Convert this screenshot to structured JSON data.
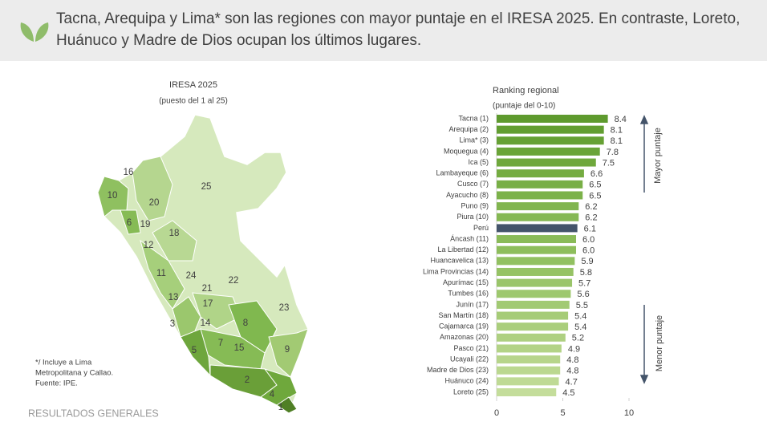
{
  "header": {
    "title_lines": [
      "Tacna, Arequipa y Lima* son las regiones con mayor puntaje en el IRESA 2025. En contraste, Loreto,",
      "Huánuco y Madre de Dios ocupan los últimos lugares."
    ]
  },
  "map": {
    "title": "IRESA 2025",
    "subtitle": "(puesto del 1 al 25)",
    "labels": [
      "16",
      "10",
      "20",
      "25",
      "6",
      "19",
      "18",
      "12",
      "11",
      "24",
      "21",
      "22",
      "13",
      "17",
      "23",
      "3",
      "14",
      "8",
      "7",
      "15",
      "9",
      "5",
      "2",
      "4",
      "1"
    ]
  },
  "note": [
    "*/ Incluye a Lima",
    "Metropolitana y Callao.",
    "Fuente: IPE."
  ],
  "footer": "RESULTADOS GENERALES",
  "chart_data": {
    "type": "bar",
    "orientation": "horizontal",
    "title": "Ranking regional",
    "subtitle": "(puntaje del 0-10)",
    "categories": [
      "Tacna (1)",
      "Arequipa (2)",
      "Lima* (3)",
      "Moquegua (4)",
      "Ica (5)",
      "Lambayeque (6)",
      "Cusco (7)",
      "Ayacucho (8)",
      "Puno (9)",
      "Piura (10)",
      "Perú",
      "Áncash (11)",
      "La Libertad (12)",
      "Huancavelica (13)",
      "Lima Provincias (14)",
      "Apurímac (15)",
      "Tumbes (16)",
      "Junín (17)",
      "San Martín (18)",
      "Cajamarca (19)",
      "Amazonas (20)",
      "Pasco (21)",
      "Ucayali (22)",
      "Madre de Dios (23)",
      "Huánuco (24)",
      "Loreto (25)"
    ],
    "values": [
      8.4,
      8.1,
      8.1,
      7.8,
      7.5,
      6.6,
      6.5,
      6.5,
      6.2,
      6.2,
      6.1,
      6,
      6,
      5.9,
      5.8,
      5.7,
      5.6,
      5.5,
      5.4,
      5.4,
      5.2,
      4.9,
      4.8,
      4.8,
      4.7,
      4.5
    ],
    "value_labels": [
      "8.4",
      "8.1",
      "8.1",
      "7.8",
      "7.5",
      "6.6",
      "6.5",
      "6.5",
      "6.2",
      "6.2",
      "6.1",
      "6.0",
      "6.0",
      "5.9",
      "5.8",
      "5.7",
      "5.6",
      "5.5",
      "5.4",
      "5.4",
      "5.2",
      "4.9",
      "4.8",
      "4.8",
      "4.7",
      "4.5"
    ],
    "colors": [
      "#5e9a2e",
      "#629e31",
      "#66a134",
      "#6aa438",
      "#6fa83c",
      "#74ac41",
      "#78af46",
      "#7cb24a",
      "#81b54f",
      "#85b853",
      "#44546a",
      "#8abb58",
      "#8ebe5c",
      "#92c161",
      "#96c365",
      "#9ac56a",
      "#9ec86e",
      "#a2ca73",
      "#a6cc77",
      "#aace7c",
      "#aed081",
      "#b3d386",
      "#b7d58b",
      "#bbd890",
      "#bfda95",
      "#c4dd9b"
    ],
    "xlim": [
      0,
      10
    ],
    "xticks": [
      0,
      5,
      10
    ],
    "annotations": [
      "Mayor puntaje",
      "Menor puntaje"
    ]
  }
}
